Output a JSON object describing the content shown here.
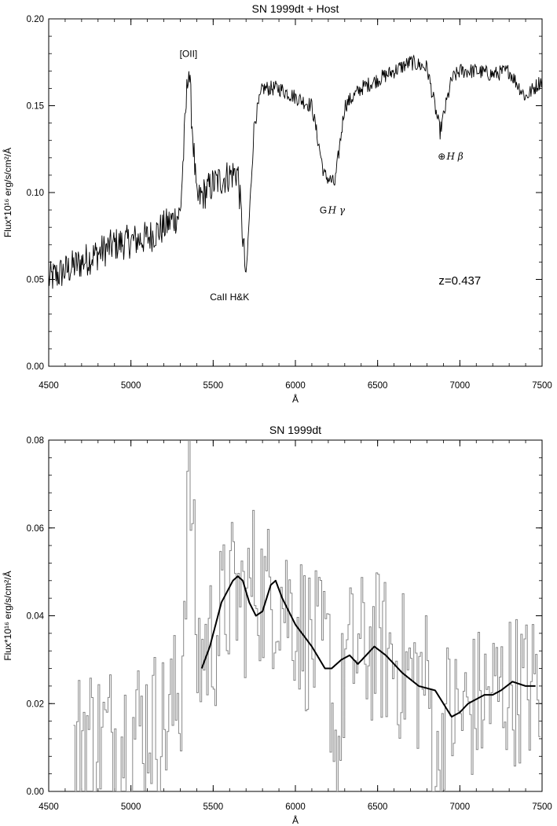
{
  "chart_data": [
    {
      "type": "line",
      "title": "SN 1999dt + Host",
      "xlabel": "Å",
      "ylabel": "Flux*10¹⁶ erg/s/cm²/Å",
      "xlim": [
        4500,
        7500
      ],
      "ylim": [
        0.0,
        0.2
      ],
      "x_ticks": [
        "4500",
        "5000",
        "5500",
        "6000",
        "6500",
        "7000",
        "7500"
      ],
      "y_ticks": [
        "0.00",
        "0.05",
        "0.10",
        "0.15",
        "0.20"
      ],
      "grid": false,
      "annotations": [
        {
          "text": "[OII]",
          "x": 5350,
          "y": 0.178
        },
        {
          "text": "CaII H&K",
          "x": 5600,
          "y": 0.038
        },
        {
          "text": "G",
          "x": 6170,
          "y": 0.088
        },
        {
          "text": "H γ",
          "x": 6250,
          "y": 0.088
        },
        {
          "text": "⊕",
          "x": 6890,
          "y": 0.119
        },
        {
          "text": "H β",
          "x": 6970,
          "y": 0.119
        },
        {
          "text": "z=0.437",
          "x": 7000,
          "y": 0.047
        }
      ],
      "series": [
        {
          "x": [
            4500,
            4600,
            4700,
            4800,
            4900,
            5000,
            5100,
            5200,
            5300,
            5350,
            5400,
            5500,
            5600,
            5650,
            5700,
            5750,
            5800,
            5900,
            6000,
            6100,
            6175,
            6240,
            6300,
            6400,
            6500,
            6600,
            6700,
            6800,
            6880,
            6950,
            7000,
            7100,
            7200,
            7300,
            7400,
            7500
          ],
          "y": [
            0.05,
            0.055,
            0.06,
            0.065,
            0.07,
            0.072,
            0.074,
            0.08,
            0.088,
            0.175,
            0.095,
            0.105,
            0.11,
            0.112,
            0.05,
            0.14,
            0.16,
            0.16,
            0.155,
            0.15,
            0.11,
            0.105,
            0.15,
            0.16,
            0.165,
            0.17,
            0.175,
            0.172,
            0.135,
            0.165,
            0.17,
            0.17,
            0.168,
            0.17,
            0.155,
            0.165
          ]
        }
      ]
    },
    {
      "type": "line",
      "title": "SN 1999dt",
      "xlabel": "Å",
      "ylabel": "Flux*10¹⁶ erg/s/cm²/Å",
      "xlim": [
        4500,
        7500
      ],
      "ylim": [
        0.0,
        0.08
      ],
      "x_ticks": [
        "4500",
        "5000",
        "5500",
        "6000",
        "6500",
        "7000",
        "7500"
      ],
      "y_ticks": [
        "0.00",
        "0.02",
        "0.04",
        "0.06",
        "0.08"
      ],
      "grid": false,
      "series": [
        {
          "style": "histogram",
          "x": [
            4650,
            4700,
            4800,
            4900,
            5000,
            5100,
            5200,
            5300,
            5350,
            5400,
            5500,
            5600,
            5700,
            5750,
            5800,
            5900,
            6000,
            6100,
            6200,
            6250,
            6300,
            6400,
            6500,
            6600,
            6700,
            6800,
            6860,
            6900,
            7000,
            7100,
            7200,
            7300,
            7400,
            7480
          ],
          "y": [
            0.005,
            0.015,
            0.012,
            0.013,
            0.014,
            0.016,
            0.015,
            0.022,
            0.078,
            0.03,
            0.035,
            0.045,
            0.043,
            0.05,
            0.044,
            0.046,
            0.04,
            0.033,
            0.03,
            0.005,
            0.03,
            0.032,
            0.033,
            0.03,
            0.026,
            0.025,
            0.002,
            0.018,
            0.017,
            0.02,
            0.022,
            0.024,
            0.023,
            0.024
          ]
        },
        {
          "style": "smoothed",
          "x": [
            5430,
            5480,
            5550,
            5620,
            5650,
            5680,
            5720,
            5760,
            5800,
            5850,
            5880,
            5920,
            6000,
            6100,
            6180,
            6220,
            6280,
            6330,
            6380,
            6430,
            6480,
            6550,
            6650,
            6750,
            6850,
            6950,
            7000,
            7050,
            7100,
            7150,
            7200,
            7250,
            7320,
            7400,
            7460
          ],
          "y": [
            0.028,
            0.033,
            0.043,
            0.048,
            0.049,
            0.048,
            0.043,
            0.04,
            0.041,
            0.047,
            0.048,
            0.044,
            0.038,
            0.033,
            0.028,
            0.028,
            0.03,
            0.031,
            0.029,
            0.031,
            0.033,
            0.031,
            0.027,
            0.024,
            0.023,
            0.017,
            0.018,
            0.02,
            0.021,
            0.022,
            0.022,
            0.023,
            0.025,
            0.024,
            0.024
          ]
        }
      ]
    }
  ]
}
